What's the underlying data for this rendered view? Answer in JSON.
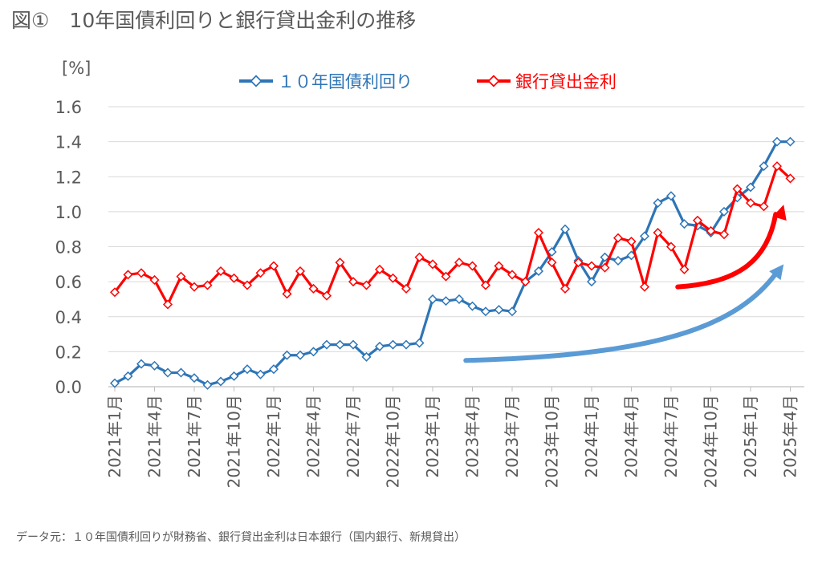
{
  "title": "図①　10年国債利回りと銀行貸出金利の推移",
  "source_note": "データ元：１０年国債利回りが財務省、銀行貸出金利は日本銀行（国内銀行、新規貸出）",
  "colors": {
    "jgb": "#2E75B6",
    "loan": "#FF0000",
    "arrow_blue": "#5B9BD5",
    "arrow_red": "#FF0000",
    "grid": "#D9D9D9"
  },
  "chart_data": {
    "type": "line",
    "title": "図①　10年国債利回りと銀行貸出金利の推移",
    "ylabel": "[%]",
    "xlabel": "",
    "ylim": [
      0,
      1.6
    ],
    "yticks": [
      "0.0",
      "0.2",
      "0.4",
      "0.6",
      "0.8",
      "1.0",
      "1.2",
      "1.4",
      "1.6"
    ],
    "grid": true,
    "legend": "top-center",
    "x_tick_labels": [
      "2021年1月",
      "2021年4月",
      "2021年7月",
      "2021年10月",
      "2022年1月",
      "2022年4月",
      "2022年7月",
      "2022年10月",
      "2023年1月",
      "2023年4月",
      "2023年7月",
      "2023年10月",
      "2024年1月",
      "2024年4月",
      "2024年7月",
      "2024年10月",
      "2025年1月",
      "2025年4月"
    ],
    "series": [
      {
        "name": "１０年国債利回り",
        "color": "#2E75B6",
        "values": [
          0.02,
          0.06,
          0.13,
          0.12,
          0.08,
          0.08,
          0.05,
          0.01,
          0.03,
          0.06,
          0.1,
          0.07,
          0.1,
          0.18,
          0.18,
          0.2,
          0.24,
          0.24,
          0.24,
          0.17,
          0.23,
          0.24,
          0.24,
          0.25,
          0.5,
          0.49,
          0.5,
          0.46,
          0.43,
          0.44,
          0.43,
          0.6,
          0.66,
          0.77,
          0.9,
          0.72,
          0.6,
          0.74,
          0.72,
          0.75,
          0.86,
          1.05,
          1.09,
          0.93,
          0.92,
          0.88,
          1.0,
          1.08,
          1.14,
          1.26,
          1.4,
          1.4
        ]
      },
      {
        "name": "銀行貸出金利",
        "color": "#FF0000",
        "values": [
          0.54,
          0.64,
          0.65,
          0.61,
          0.47,
          0.63,
          0.57,
          0.58,
          0.66,
          0.62,
          0.58,
          0.65,
          0.69,
          0.53,
          0.66,
          0.56,
          0.52,
          0.71,
          0.6,
          0.58,
          0.67,
          0.62,
          0.56,
          0.74,
          0.7,
          0.63,
          0.71,
          0.69,
          0.58,
          0.69,
          0.64,
          0.6,
          0.88,
          0.71,
          0.56,
          0.71,
          0.69,
          0.68,
          0.85,
          0.83,
          0.57,
          0.88,
          0.8,
          0.67,
          0.95,
          0.89,
          0.87,
          1.13,
          1.05,
          1.03,
          1.26,
          1.19
        ]
      }
    ],
    "annotations": [
      {
        "type": "trend-arrow",
        "color": "#5B9BD5",
        "from_index": 26.5,
        "from_value": 0.15,
        "to_index": 50.5,
        "to_value": 0.7
      },
      {
        "type": "trend-arrow",
        "color": "#FF0000",
        "from_index": 42.5,
        "from_value": 0.57,
        "to_index": 50.5,
        "to_value": 1.04
      }
    ]
  }
}
